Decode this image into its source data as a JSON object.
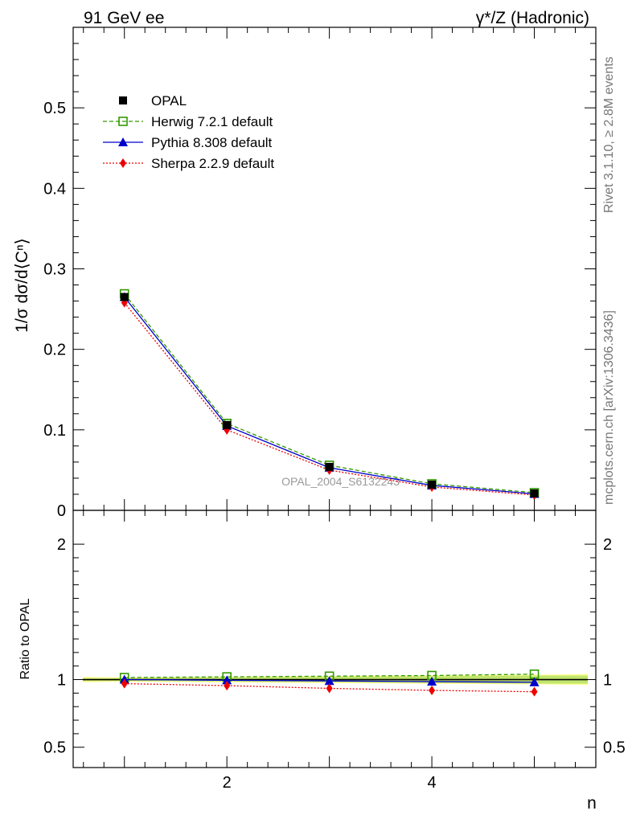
{
  "header": {
    "left": "91 GeV ee",
    "right": "γ*/Z (Hadronic)"
  },
  "side_labels": {
    "rivet": "Rivet 3.1.10, ≥ 2.8M events",
    "mcplots": "mcplots.cern.ch [arXiv:1306.3436]"
  },
  "watermark": "OPAL_2004_S6132243",
  "chart_data": [
    {
      "type": "line",
      "panel": "main",
      "ylabel": "1/σ dσ/d⟨Cⁿ⟩",
      "xlim": [
        0.5,
        5.6
      ],
      "ylim": [
        0,
        0.6
      ],
      "yticks": [
        "0",
        "0.1",
        "0.2",
        "0.3",
        "0.4",
        "0.5"
      ],
      "x": [
        1,
        2,
        3,
        4,
        5
      ],
      "legend_placement": "top-left",
      "series": [
        {
          "name": "OPAL",
          "values": [
            0.265,
            0.106,
            0.054,
            0.032,
            0.021
          ],
          "color": "#000000",
          "marker": "square"
        },
        {
          "name": "Herwig 7.2.1 default",
          "values": [
            0.269,
            0.108,
            0.056,
            0.033,
            0.022
          ],
          "color": "#339900",
          "marker": "open-square"
        },
        {
          "name": "Pythia 8.308 default",
          "values": [
            0.265,
            0.105,
            0.053,
            0.031,
            0.0205
          ],
          "color": "#0000cc",
          "marker": "triangle"
        },
        {
          "name": "Sherpa 2.2.9 default",
          "values": [
            0.258,
            0.1,
            0.05,
            0.029,
            0.019
          ],
          "color": "#ee0000",
          "marker": "diamond"
        }
      ]
    },
    {
      "type": "line",
      "panel": "ratio",
      "ylabel": "Ratio to OPAL",
      "xlabel": "n",
      "xlim": [
        0.5,
        5.6
      ],
      "ylim": [
        0.35,
        2.25
      ],
      "yticks": [
        "0.5",
        "1",
        "2"
      ],
      "xticks": [
        "2",
        "4"
      ],
      "x": [
        1,
        2,
        3,
        4,
        5
      ],
      "band": {
        "lower": [
          0.99,
          0.985,
          0.98,
          0.975,
          0.97
        ],
        "upper": [
          1.01,
          1.015,
          1.02,
          1.025,
          1.03
        ]
      },
      "series": [
        {
          "name": "Herwig 7.2.1 default",
          "values": [
            1.015,
            1.02,
            1.025,
            1.03,
            1.04
          ],
          "color": "#339900",
          "marker": "open-square"
        },
        {
          "name": "Pythia 8.308 default",
          "values": [
            1.0,
            0.995,
            0.99,
            0.985,
            0.98
          ],
          "color": "#0000cc",
          "marker": "triangle"
        },
        {
          "name": "Sherpa 2.2.9 default",
          "values": [
            0.97,
            0.955,
            0.935,
            0.92,
            0.91
          ],
          "color": "#ee0000",
          "marker": "diamond"
        }
      ]
    }
  ]
}
